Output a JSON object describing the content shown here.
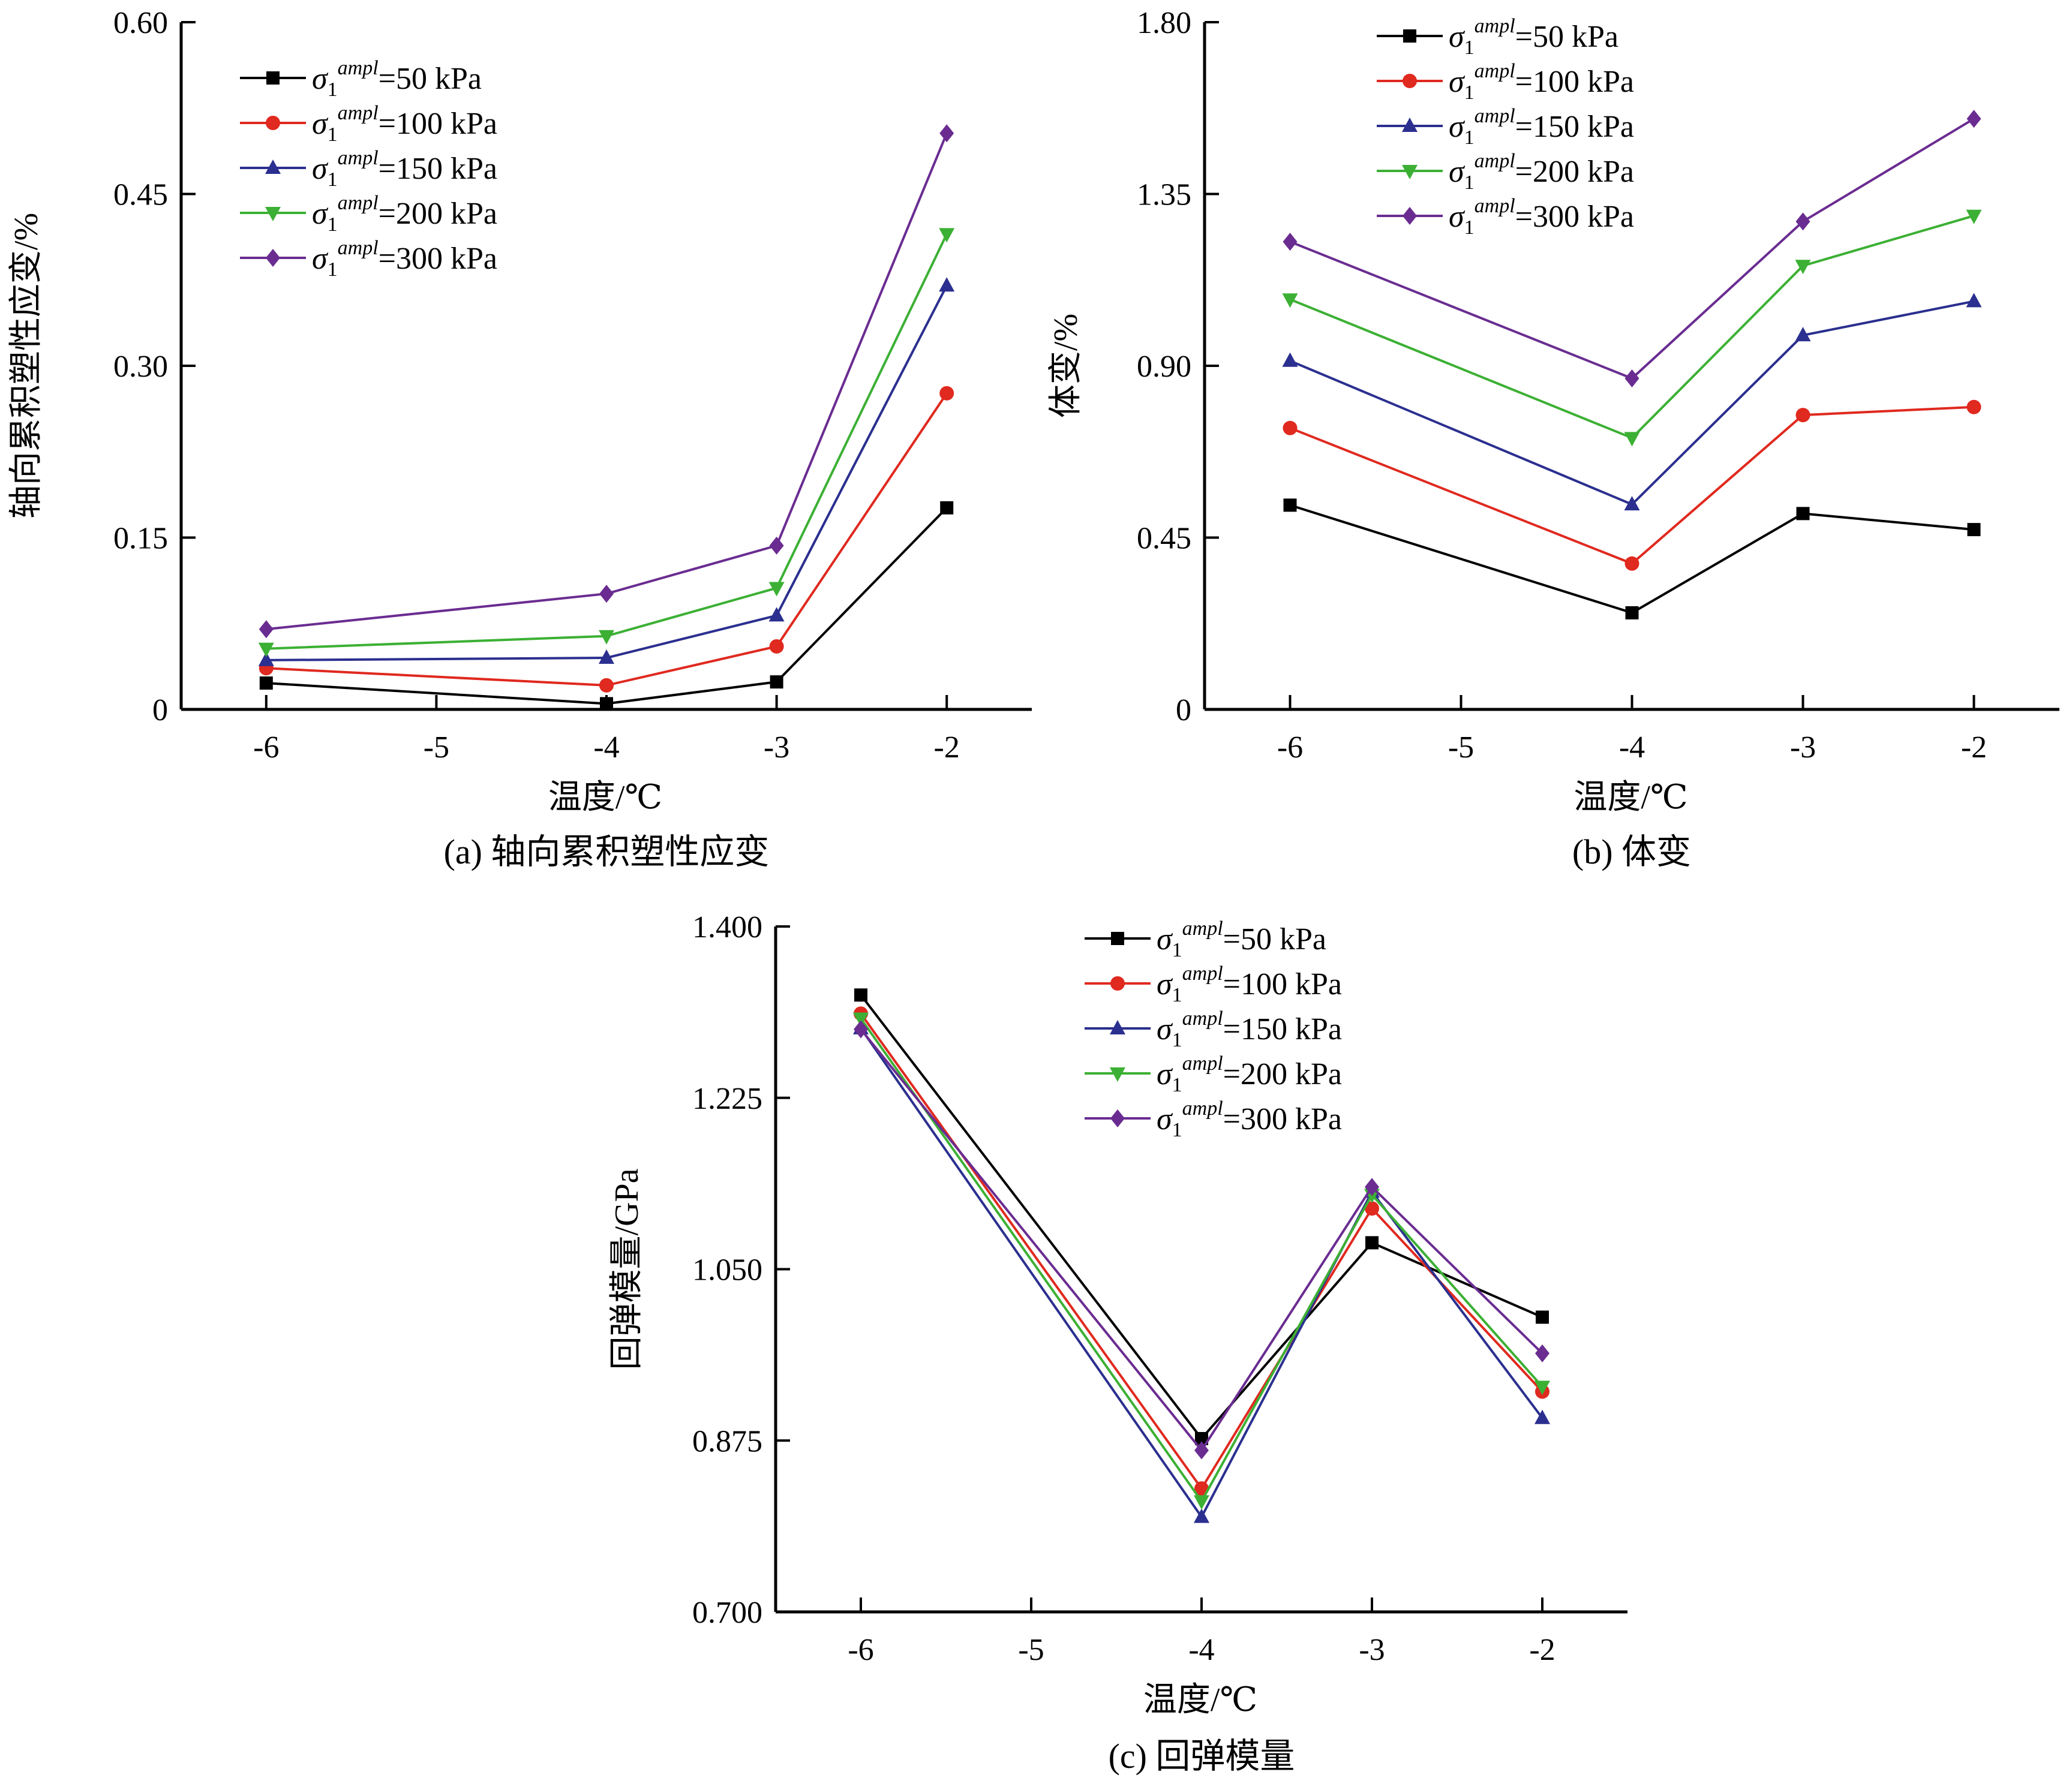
{
  "chart_data": [
    {
      "id": "a",
      "type": "line",
      "caption": "(a) 轴向累积塑性应变",
      "xlabel": "温度/℃",
      "ylabel": "轴向累积塑性应变/%",
      "x": [
        -6,
        -4,
        -3,
        -2
      ],
      "xticks": [
        "-6",
        "-5",
        "-4",
        "-3",
        "-2"
      ],
      "xtick_values": [
        -6,
        -5,
        -4,
        -3,
        -2
      ],
      "xlim": [
        -6.5,
        -1.5
      ],
      "ylim": [
        0,
        0.6
      ],
      "yticks": [
        "0",
        "0.15",
        "0.30",
        "0.45",
        "0.60"
      ],
      "ytick_values": [
        0,
        0.15,
        0.3,
        0.45,
        0.6
      ],
      "legend_position": "top-left",
      "series": [
        {
          "name": "50 kPa",
          "marker": "square",
          "color": "#000000",
          "values": [
            0.023,
            0.005,
            0.024,
            0.176
          ]
        },
        {
          "name": "100 kPa",
          "marker": "circle",
          "color": "#e0291f",
          "values": [
            0.036,
            0.021,
            0.055,
            0.276
          ]
        },
        {
          "name": "150 kPa",
          "marker": "triangle-up",
          "color": "#2b2f8f",
          "values": [
            0.043,
            0.045,
            0.082,
            0.37
          ]
        },
        {
          "name": "200 kPa",
          "marker": "triangle-down",
          "color": "#3cb034",
          "values": [
            0.053,
            0.064,
            0.106,
            0.415
          ]
        },
        {
          "name": "300 kPa",
          "marker": "diamond",
          "color": "#6a2c91",
          "values": [
            0.07,
            0.101,
            0.143,
            0.503
          ]
        }
      ]
    },
    {
      "id": "b",
      "type": "line",
      "caption": "(b) 体变",
      "xlabel": "温度/℃",
      "ylabel": "体变/%",
      "x": [
        -6,
        -4,
        -3,
        -2
      ],
      "xticks": [
        "-6",
        "-5",
        "-4",
        "-3",
        "-2"
      ],
      "xtick_values": [
        -6,
        -5,
        -4,
        -3,
        -2
      ],
      "xlim": [
        -6.5,
        -1.5
      ],
      "ylim": [
        0,
        1.8
      ],
      "yticks": [
        "0",
        "0.45",
        "0.90",
        "1.35",
        "1.80"
      ],
      "ytick_values": [
        0,
        0.45,
        0.9,
        1.35,
        1.8
      ],
      "legend_position": "top-left",
      "series": [
        {
          "name": "50 kPa",
          "marker": "square",
          "color": "#000000",
          "values": [
            0.535,
            0.253,
            0.513,
            0.471
          ]
        },
        {
          "name": "100 kPa",
          "marker": "circle",
          "color": "#e0291f",
          "values": [
            0.737,
            0.382,
            0.771,
            0.792
          ]
        },
        {
          "name": "150 kPa",
          "marker": "triangle-up",
          "color": "#2b2f8f",
          "values": [
            0.913,
            0.537,
            0.98,
            1.069
          ]
        },
        {
          "name": "200 kPa",
          "marker": "triangle-down",
          "color": "#3cb034",
          "values": [
            1.074,
            0.711,
            1.162,
            1.293
          ]
        },
        {
          "name": "300 kPa",
          "marker": "diamond",
          "color": "#6a2c91",
          "values": [
            1.225,
            0.867,
            1.278,
            1.547
          ]
        }
      ]
    },
    {
      "id": "c",
      "type": "line",
      "caption": "(c) 回弹模量",
      "xlabel": "温度/℃",
      "ylabel": "回弹模量/GPa",
      "x": [
        -6,
        -4,
        -3,
        -2
      ],
      "xticks": [
        "-6",
        "-5",
        "-4",
        "-3",
        "-2"
      ],
      "xtick_values": [
        -6,
        -5,
        -4,
        -3,
        -2
      ],
      "xlim": [
        -6.5,
        -1.5
      ],
      "ylim": [
        0.7,
        1.4
      ],
      "yticks": [
        "0.700",
        "0.875",
        "1.050",
        "1.225",
        "1.400"
      ],
      "ytick_values": [
        0.7,
        0.875,
        1.05,
        1.225,
        1.4
      ],
      "legend_position": "top-center",
      "series": [
        {
          "name": "50 kPa",
          "marker": "square",
          "color": "#000000",
          "values": [
            1.33,
            0.877,
            1.077,
            1.001
          ]
        },
        {
          "name": "100 kPa",
          "marker": "circle",
          "color": "#e0291f",
          "values": [
            1.311,
            0.826,
            1.112,
            0.925
          ]
        },
        {
          "name": "150 kPa",
          "marker": "triangle-up",
          "color": "#2b2f8f",
          "values": [
            1.296,
            0.797,
            1.129,
            0.898
          ]
        },
        {
          "name": "200 kPa",
          "marker": "triangle-down",
          "color": "#3cb034",
          "values": [
            1.306,
            0.813,
            1.126,
            0.93
          ]
        },
        {
          "name": "300 kPa",
          "marker": "diamond",
          "color": "#6a2c91",
          "values": [
            1.295,
            0.865,
            1.134,
            0.964
          ]
        }
      ]
    }
  ]
}
